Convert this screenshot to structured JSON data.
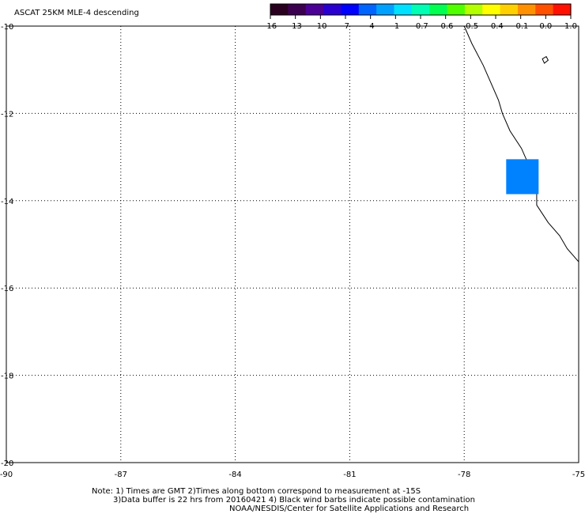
{
  "title": "ASCAT 25KM MLE-4 descending",
  "colorbar": {
    "colors": [
      "#2a0020",
      "#3c0050",
      "#4b0096",
      "#2a00d0",
      "#0000ff",
      "#0064ff",
      "#00a0ff",
      "#00e0ff",
      "#00ffb4",
      "#00ff50",
      "#50ff00",
      "#b4ff00",
      "#ffff00",
      "#ffd000",
      "#ff9000",
      "#ff5000",
      "#ff1000"
    ],
    "labels": [
      "-16",
      "-13",
      "-10",
      "-7",
      "-4",
      "-1",
      "-0.7",
      "-0.6",
      "-0.5",
      "-0.4",
      "-0.1",
      "0.0",
      "1.0"
    ]
  },
  "map": {
    "lon_range": [
      -90,
      -75
    ],
    "lat_range": [
      -20,
      -10
    ],
    "lon_ticks": [
      -90,
      -87,
      -84,
      -81,
      -78,
      -75
    ],
    "lon_labels": [
      "-90",
      "-87",
      "-84",
      "-81",
      "-78",
      "-75"
    ],
    "lat_ticks": [
      -10,
      -12,
      -14,
      -16,
      -18,
      -20
    ],
    "lat_labels": [
      "-10",
      "-12",
      "-14",
      "-16",
      "-18",
      "-20"
    ],
    "grid": "dotted",
    "coastline": [
      [
        -78.0,
        -10.0
      ],
      [
        -77.8,
        -10.4
      ],
      [
        -77.5,
        -10.9
      ],
      [
        -77.3,
        -11.3
      ],
      [
        -77.1,
        -11.7
      ],
      [
        -77.0,
        -12.0
      ],
      [
        -76.8,
        -12.4
      ],
      [
        -76.5,
        -12.8
      ],
      [
        -76.3,
        -13.2
      ],
      [
        -76.2,
        -13.6
      ],
      [
        -76.1,
        -13.8
      ],
      [
        -76.1,
        -14.1
      ],
      [
        -75.8,
        -14.5
      ],
      [
        -75.5,
        -14.8
      ],
      [
        -75.3,
        -15.1
      ],
      [
        -75.1,
        -15.3
      ],
      [
        -75.0,
        -15.4
      ]
    ],
    "island": [
      [
        -75.95,
        -10.75
      ],
      [
        -75.85,
        -10.7
      ],
      [
        -75.8,
        -10.78
      ],
      [
        -75.9,
        -10.85
      ]
    ],
    "data_cell": {
      "lon_min": -76.9,
      "lon_max": -76.05,
      "lat_min": -13.85,
      "lat_max": -13.05,
      "value": "-1",
      "color": "#0082ff"
    }
  },
  "notes": {
    "line1": "Note: 1) Times are GMT 2)Times along bottom correspond to measurement at -15S",
    "line2": "3)Data buffer is 22 hrs from 20160421 4) Black wind barbs indicate possible contamination",
    "line3": "NOAA/NESDIS/Center for Satellite Applications and Research"
  }
}
